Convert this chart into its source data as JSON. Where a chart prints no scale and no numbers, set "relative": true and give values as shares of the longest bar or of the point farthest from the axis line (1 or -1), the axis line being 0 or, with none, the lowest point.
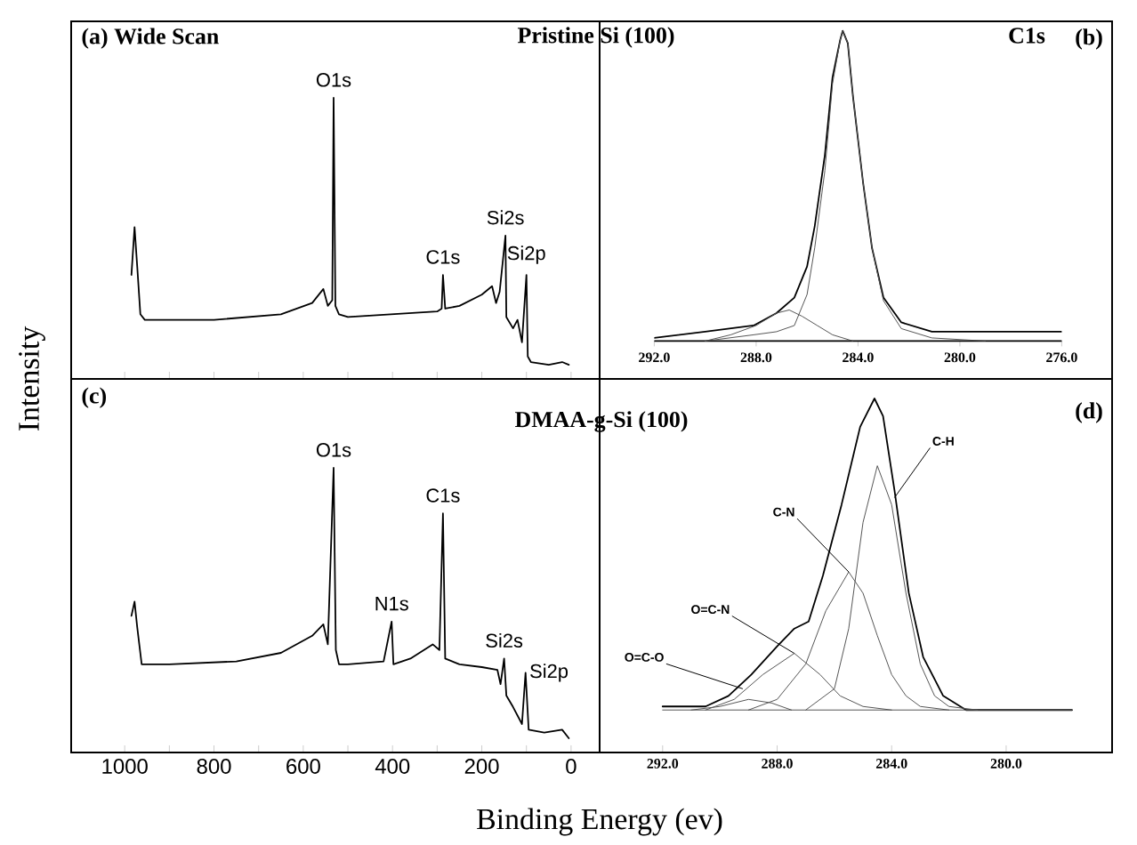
{
  "chart_data": [
    {
      "type": "line",
      "relative": true,
      "title": "(a) Wide Scan",
      "subtitle": "Pristine Si (100)",
      "ylabel": "Intensity",
      "xlim": [
        1120,
        -64
      ],
      "tick_labels": false,
      "xticks": [
        1000,
        {
          "value": 900,
          "label": null
        },
        800,
        {
          "value": 700,
          "label": null
        },
        600,
        {
          "value": 500,
          "label": null
        },
        400,
        {
          "value": 300,
          "label": null
        },
        200,
        {
          "value": 100,
          "label": null
        },
        0
      ],
      "series": [
        {
          "color": "#000000",
          "x": [
            985,
            978,
            972,
            965,
            955,
            800,
            650,
            580,
            555,
            545,
            535,
            532,
            528,
            520,
            500,
            300,
            290,
            287,
            282,
            250,
            200,
            177,
            168,
            160,
            147,
            145,
            130,
            120,
            110,
            100,
            97,
            90,
            50,
            20,
            5
          ],
          "values": [
            0.37,
            0.54,
            0.4,
            0.23,
            0.21,
            0.21,
            0.23,
            0.27,
            0.32,
            0.26,
            0.28,
            1.0,
            0.26,
            0.23,
            0.22,
            0.24,
            0.25,
            0.37,
            0.25,
            0.26,
            0.3,
            0.33,
            0.27,
            0.31,
            0.51,
            0.22,
            0.18,
            0.21,
            0.13,
            0.37,
            0.08,
            0.06,
            0.05,
            0.06,
            0.05
          ]
        }
      ],
      "annotations": [
        {
          "text": "O1s",
          "x": 532,
          "y": 1.0
        },
        {
          "text": "C1s",
          "x": 287,
          "y": 0.37
        },
        {
          "text": "Si2s",
          "x": 147,
          "y": 0.51
        },
        {
          "text": "Si2p",
          "x": 100,
          "y": 0.37
        }
      ]
    },
    {
      "type": "line",
      "relative": true,
      "title": "(b)",
      "subtitle": "C1s",
      "xlim": [
        292,
        276
      ],
      "tick_labels": "x",
      "xticks": [
        {
          "value": 292,
          "label": "292.0"
        },
        {
          "value": 288,
          "label": "288.0"
        },
        {
          "value": 284,
          "label": "284.0"
        },
        {
          "value": 280,
          "label": "280.0"
        },
        {
          "value": 276,
          "label": "276.0"
        }
      ],
      "series": [
        {
          "color": "#000000",
          "x": [
            292.0,
            290.0,
            288.1,
            287.2,
            286.5,
            286.0,
            285.7,
            285.3,
            285.0,
            284.7,
            284.6,
            284.4,
            284.2,
            283.8,
            283.45,
            283.0,
            282.3,
            281.1,
            278.3,
            276.0
          ],
          "values": [
            0.01,
            0.03,
            0.05,
            0.09,
            0.14,
            0.24,
            0.37,
            0.6,
            0.85,
            0.97,
            1.0,
            0.96,
            0.79,
            0.51,
            0.3,
            0.14,
            0.06,
            0.03,
            0.03,
            0.03
          ]
        },
        {
          "color": "#555555",
          "x": [
            290.0,
            288.1,
            287.2,
            286.5,
            286.0,
            285.7,
            285.3,
            285.0,
            284.7,
            284.6,
            284.4,
            284.2,
            283.8,
            283.45,
            283.0,
            282.3,
            281.1,
            279.0
          ],
          "values": [
            0.0,
            0.02,
            0.03,
            0.05,
            0.15,
            0.3,
            0.55,
            0.83,
            0.97,
            1.0,
            0.96,
            0.79,
            0.51,
            0.3,
            0.13,
            0.04,
            0.01,
            0.0
          ]
        },
        {
          "color": "#555555",
          "x": [
            290.0,
            289.0,
            288.0,
            287.2,
            286.7,
            286.2,
            285.6,
            285.0,
            284.2
          ],
          "values": [
            0.0,
            0.02,
            0.05,
            0.09,
            0.1,
            0.08,
            0.05,
            0.02,
            0.0
          ]
        }
      ]
    },
    {
      "type": "line",
      "relative": true,
      "title": "(c)",
      "subtitle": "DMAA-g-Si (100)",
      "xlabel": "Binding Energy (ev)",
      "xlim": [
        1120,
        -64
      ],
      "tick_labels": "x",
      "xticks": [
        1000,
        {
          "value": 900,
          "label": null
        },
        800,
        {
          "value": 700,
          "label": null
        },
        600,
        {
          "value": 500,
          "label": null
        },
        400,
        {
          "value": 300,
          "label": null
        },
        200,
        {
          "value": 100,
          "label": null
        },
        0
      ],
      "series": [
        {
          "color": "#000000",
          "x": [
            985,
            978,
            972,
            962,
            900,
            750,
            650,
            580,
            555,
            545,
            532,
            527,
            520,
            500,
            420,
            402,
            398,
            360,
            310,
            295,
            287,
            282,
            250,
            200,
            165,
            158,
            150,
            145,
            130,
            110,
            102,
            95,
            60,
            20,
            5
          ],
          "values": [
            0.48,
            0.53,
            0.44,
            0.31,
            0.31,
            0.32,
            0.35,
            0.41,
            0.45,
            0.38,
            1.0,
            0.36,
            0.31,
            0.31,
            0.32,
            0.46,
            0.31,
            0.33,
            0.38,
            0.36,
            0.84,
            0.33,
            0.31,
            0.3,
            0.29,
            0.24,
            0.33,
            0.2,
            0.16,
            0.1,
            0.28,
            0.08,
            0.07,
            0.08,
            0.05
          ]
        }
      ],
      "annotations": [
        {
          "text": "O1s",
          "x": 532,
          "y": 1.0
        },
        {
          "text": "N1s",
          "x": 402,
          "y": 0.46
        },
        {
          "text": "C1s",
          "x": 287,
          "y": 0.84
        },
        {
          "text": "Si2s",
          "x": 150,
          "y": 0.33
        },
        {
          "text": "Si2p",
          "x": 102,
          "y": 0.28
        }
      ]
    },
    {
      "type": "line",
      "relative": true,
      "title": "(d)",
      "xlim": [
        294.2,
        276.3
      ],
      "tick_labels": "x",
      "xticks": [
        {
          "value": 292,
          "label": "292.0"
        },
        {
          "value": 288,
          "label": "288.0"
        },
        {
          "value": 284,
          "label": "284.0"
        },
        {
          "value": 280,
          "label": "280.0"
        }
      ],
      "series": [
        {
          "color": "#000000",
          "x": [
            292.0,
            290.5,
            289.7,
            288.9,
            288.0,
            287.4,
            286.9,
            286.4,
            285.75,
            285.1,
            284.6,
            284.3,
            283.9,
            283.4,
            282.9,
            282.2,
            281.4,
            280.2,
            277.7
          ],
          "values": [
            0.13,
            0.13,
            0.16,
            0.22,
            0.3,
            0.35,
            0.37,
            0.5,
            0.7,
            0.92,
            1.0,
            0.95,
            0.74,
            0.45,
            0.27,
            0.16,
            0.12,
            0.12,
            0.12
          ]
        },
        {
          "color": "#555555",
          "x": [
            287.0,
            286.0,
            285.5,
            285.0,
            284.5,
            284.0,
            283.5,
            283.0,
            282.5,
            282.0,
            281.0
          ],
          "values": [
            0.12,
            0.18,
            0.35,
            0.65,
            0.81,
            0.7,
            0.45,
            0.25,
            0.16,
            0.13,
            0.12
          ]
        },
        {
          "color": "#555555",
          "x": [
            289.0,
            288.0,
            287.0,
            286.3,
            285.5,
            285.0,
            284.5,
            284.0,
            283.5,
            283.0,
            282.0
          ],
          "values": [
            0.12,
            0.15,
            0.25,
            0.4,
            0.51,
            0.45,
            0.33,
            0.22,
            0.16,
            0.13,
            0.12
          ]
        },
        {
          "color": "#555555",
          "x": [
            290.5,
            289.5,
            288.5,
            287.4,
            286.5,
            285.8,
            285.0,
            284.0
          ],
          "values": [
            0.12,
            0.15,
            0.22,
            0.28,
            0.22,
            0.16,
            0.13,
            0.12
          ]
        },
        {
          "color": "#555555",
          "x": [
            291.0,
            290.0,
            289.0,
            288.2,
            287.5
          ],
          "values": [
            0.12,
            0.13,
            0.15,
            0.14,
            0.12
          ]
        },
        {
          "color": "#555555",
          "x": [
            292.0,
            277.7
          ],
          "values": [
            0.12,
            0.12
          ]
        }
      ],
      "annotations": [
        {
          "text": "C-H",
          "x": 283.9,
          "y": 0.72
        },
        {
          "text": "C-N",
          "x": 285.5,
          "y": 0.51
        },
        {
          "text": "O=C-N",
          "x": 287.4,
          "y": 0.28
        },
        {
          "text": "O=C-O",
          "x": 289.2,
          "y": 0.18
        }
      ]
    }
  ]
}
